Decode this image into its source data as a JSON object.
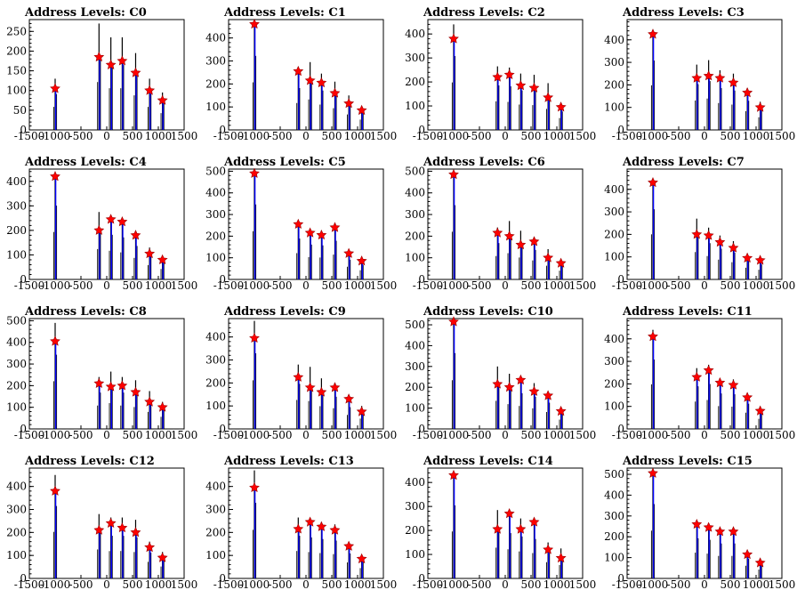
{
  "chart_data": [
    {
      "type": "bar",
      "title": "Address Levels: C0",
      "xlim": [
        -1500,
        1500
      ],
      "ylim": [
        0,
        280
      ],
      "yticks": [
        0,
        50,
        100,
        150,
        200,
        250
      ],
      "xtick_labels": [
        "-1500",
        "-1000",
        "-500",
        "0",
        "500",
        "1000",
        "1500"
      ],
      "star_x": [
        -1000,
        -150,
        80,
        300,
        560,
        830,
        1080
      ],
      "star_y": [
        105,
        185,
        165,
        175,
        145,
        100,
        75
      ],
      "peak_max": [
        130,
        270,
        235,
        235,
        195,
        130,
        95
      ]
    },
    {
      "type": "bar",
      "title": "Address Levels: C1",
      "xlim": [
        -1500,
        1500
      ],
      "ylim": [
        0,
        480
      ],
      "yticks": [
        0,
        100,
        200,
        300,
        400
      ],
      "xtick_labels": [
        "-1500",
        "-1000",
        "-500",
        "0",
        "500",
        "1000",
        "1500"
      ],
      "star_x": [
        -1000,
        -150,
        80,
        300,
        560,
        830,
        1080
      ],
      "star_y": [
        460,
        255,
        215,
        205,
        160,
        115,
        85
      ],
      "peak_max": [
        460,
        260,
        295,
        245,
        210,
        150,
        100
      ]
    },
    {
      "type": "bar",
      "title": "Address Levels: C2",
      "xlim": [
        -1500,
        1500
      ],
      "ylim": [
        0,
        460
      ],
      "yticks": [
        0,
        100,
        200,
        300,
        400
      ],
      "xtick_labels": [
        "-1500",
        "-1000",
        "-500",
        "0",
        "500",
        "1000",
        "1500"
      ],
      "star_x": [
        -1000,
        -150,
        80,
        300,
        560,
        830,
        1080
      ],
      "star_y": [
        380,
        220,
        230,
        185,
        175,
        135,
        95
      ],
      "peak_max": [
        440,
        265,
        260,
        235,
        230,
        195,
        110
      ]
    },
    {
      "type": "bar",
      "title": "Address Levels: C3",
      "xlim": [
        -1500,
        1500
      ],
      "ylim": [
        0,
        490
      ],
      "yticks": [
        0,
        100,
        200,
        300,
        400
      ],
      "xtick_labels": [
        "-1500",
        "-1000",
        "-500",
        "0",
        "500",
        "1000",
        "1500"
      ],
      "star_x": [
        -1000,
        -150,
        80,
        300,
        560,
        830,
        1080
      ],
      "star_y": [
        425,
        230,
        240,
        230,
        210,
        165,
        100
      ],
      "peak_max": [
        440,
        290,
        310,
        265,
        250,
        185,
        125
      ]
    },
    {
      "type": "bar",
      "title": "Address Levels: C4",
      "xlim": [
        -1500,
        1500
      ],
      "ylim": [
        0,
        450
      ],
      "yticks": [
        0,
        100,
        200,
        300,
        400
      ],
      "xtick_labels": [
        "-1500",
        "-1000",
        "-500",
        "0",
        "500",
        "1000",
        "1500"
      ],
      "star_x": [
        -1000,
        -150,
        80,
        300,
        560,
        830,
        1080
      ],
      "star_y": [
        420,
        200,
        245,
        235,
        180,
        105,
        80
      ],
      "peak_max": [
        430,
        275,
        260,
        245,
        195,
        130,
        95
      ]
    },
    {
      "type": "bar",
      "title": "Address Levels: C5",
      "xlim": [
        -1500,
        1500
      ],
      "ylim": [
        0,
        510
      ],
      "yticks": [
        0,
        100,
        200,
        300,
        400,
        500
      ],
      "xtick_labels": [
        "-1500",
        "-1000",
        "-500",
        "0",
        "500",
        "1000",
        "1500"
      ],
      "star_x": [
        -1000,
        -150,
        80,
        300,
        560,
        830,
        1080
      ],
      "star_y": [
        490,
        255,
        215,
        205,
        240,
        120,
        85
      ],
      "peak_max": [
        495,
        270,
        230,
        225,
        255,
        130,
        95
      ]
    },
    {
      "type": "bar",
      "title": "Address Levels: C6",
      "xlim": [
        -1500,
        1500
      ],
      "ylim": [
        0,
        510
      ],
      "yticks": [
        0,
        100,
        200,
        300,
        400,
        500
      ],
      "xtick_labels": [
        "-1500",
        "-1000",
        "-500",
        "0",
        "500",
        "1000",
        "1500"
      ],
      "star_x": [
        -1000,
        -150,
        80,
        300,
        560,
        830,
        1080
      ],
      "star_y": [
        485,
        215,
        200,
        160,
        175,
        100,
        75
      ],
      "peak_max": [
        490,
        240,
        270,
        225,
        195,
        140,
        90
      ]
    },
    {
      "type": "bar",
      "title": "Address Levels: C7",
      "xlim": [
        -1500,
        1500
      ],
      "ylim": [
        0,
        490
      ],
      "yticks": [
        0,
        100,
        200,
        300,
        400
      ],
      "xtick_labels": [
        "-1500",
        "-1000",
        "-500",
        "0",
        "500",
        "1000",
        "1500"
      ],
      "star_x": [
        -1000,
        -150,
        80,
        300,
        560,
        830,
        1080
      ],
      "star_y": [
        430,
        200,
        195,
        165,
        140,
        95,
        85
      ],
      "peak_max": [
        445,
        270,
        230,
        195,
        170,
        115,
        95
      ]
    },
    {
      "type": "bar",
      "title": "Address Levels: C8",
      "xlim": [
        -1500,
        1500
      ],
      "ylim": [
        0,
        510
      ],
      "yticks": [
        0,
        100,
        200,
        300,
        400,
        500
      ],
      "xtick_labels": [
        "-1500",
        "-1000",
        "-500",
        "0",
        "500",
        "1000",
        "1500"
      ],
      "star_x": [
        -1000,
        -150,
        80,
        300,
        560,
        830,
        1080
      ],
      "star_y": [
        405,
        210,
        195,
        200,
        170,
        125,
        100
      ],
      "peak_max": [
        490,
        240,
        265,
        240,
        225,
        175,
        125
      ]
    },
    {
      "type": "bar",
      "title": "Address Levels: C9",
      "xlim": [
        -1500,
        1500
      ],
      "ylim": [
        0,
        480
      ],
      "yticks": [
        0,
        100,
        200,
        300,
        400
      ],
      "xtick_labels": [
        "-1500",
        "-1000",
        "-500",
        "0",
        "500",
        "1000",
        "1500"
      ],
      "star_x": [
        -1000,
        -150,
        80,
        300,
        560,
        830,
        1080
      ],
      "star_y": [
        395,
        225,
        180,
        160,
        180,
        130,
        75
      ],
      "peak_max": [
        470,
        280,
        270,
        220,
        200,
        135,
        100
      ]
    },
    {
      "type": "bar",
      "title": "Address Levels: C10",
      "xlim": [
        -1500,
        1500
      ],
      "ylim": [
        0,
        530
      ],
      "yticks": [
        0,
        100,
        200,
        300,
        400,
        500
      ],
      "xtick_labels": [
        "-1500",
        "-1000",
        "-500",
        "0",
        "500",
        "1000",
        "1500"
      ],
      "star_x": [
        -1000,
        -150,
        80,
        300,
        560,
        830,
        1080
      ],
      "star_y": [
        515,
        215,
        200,
        235,
        180,
        160,
        85
      ],
      "peak_max": [
        520,
        300,
        265,
        245,
        220,
        180,
        100
      ]
    },
    {
      "type": "bar",
      "title": "Address Levels: C11",
      "xlim": [
        -1500,
        1500
      ],
      "ylim": [
        0,
        490
      ],
      "yticks": [
        0,
        100,
        200,
        300,
        400
      ],
      "xtick_labels": [
        "-1500",
        "-1000",
        "-500",
        "0",
        "500",
        "1000",
        "1500"
      ],
      "star_x": [
        -1000,
        -150,
        80,
        300,
        560,
        830,
        1080
      ],
      "star_y": [
        410,
        230,
        260,
        205,
        195,
        140,
        80
      ],
      "peak_max": [
        440,
        270,
        285,
        225,
        220,
        160,
        100
      ]
    },
    {
      "type": "bar",
      "title": "Address Levels: C12",
      "xlim": [
        -1500,
        1500
      ],
      "ylim": [
        0,
        480
      ],
      "yticks": [
        0,
        100,
        200,
        300,
        400
      ],
      "xtick_labels": [
        "-1500",
        "-1000",
        "-500",
        "0",
        "500",
        "1000",
        "1500"
      ],
      "star_x": [
        -1000,
        -150,
        80,
        300,
        560,
        830,
        1080
      ],
      "star_y": [
        380,
        210,
        240,
        220,
        200,
        135,
        90
      ],
      "peak_max": [
        450,
        280,
        265,
        265,
        255,
        160,
        115
      ]
    },
    {
      "type": "bar",
      "title": "Address Levels: C13",
      "xlim": [
        -1500,
        1500
      ],
      "ylim": [
        0,
        480
      ],
      "yticks": [
        0,
        100,
        200,
        300,
        400
      ],
      "xtick_labels": [
        "-1500",
        "-1000",
        "-500",
        "0",
        "500",
        "1000",
        "1500"
      ],
      "star_x": [
        -1000,
        -150,
        80,
        300,
        560,
        830,
        1080
      ],
      "star_y": [
        395,
        215,
        245,
        225,
        210,
        140,
        85
      ],
      "peak_max": [
        470,
        265,
        255,
        245,
        235,
        155,
        100
      ]
    },
    {
      "type": "bar",
      "title": "Address Levels: C14",
      "xlim": [
        -1500,
        1500
      ],
      "ylim": [
        0,
        460
      ],
      "yticks": [
        0,
        100,
        200,
        300,
        400
      ],
      "xtick_labels": [
        "-1500",
        "-1000",
        "-500",
        "0",
        "500",
        "1000",
        "1500"
      ],
      "star_x": [
        -1000,
        -150,
        80,
        300,
        560,
        830,
        1080
      ],
      "star_y": [
        430,
        205,
        270,
        205,
        235,
        120,
        85
      ],
      "peak_max": [
        435,
        285,
        270,
        250,
        235,
        150,
        125
      ]
    },
    {
      "type": "bar",
      "title": "Address Levels: C15",
      "xlim": [
        -1500,
        1500
      ],
      "ylim": [
        0,
        530
      ],
      "yticks": [
        0,
        100,
        200,
        300,
        400,
        500
      ],
      "xtick_labels": [
        "-1500",
        "-1000",
        "-500",
        "0",
        "500",
        "1000",
        "1500"
      ],
      "star_x": [
        -1000,
        -150,
        80,
        300,
        560,
        830,
        1080
      ],
      "star_y": [
        505,
        260,
        245,
        225,
        225,
        115,
        75
      ],
      "peak_max": [
        510,
        275,
        265,
        240,
        240,
        135,
        95
      ]
    }
  ],
  "colors": {
    "histogram_line": "#000000",
    "fill": "#0000ff",
    "marker": "#ff0000",
    "axis": "#000000"
  }
}
